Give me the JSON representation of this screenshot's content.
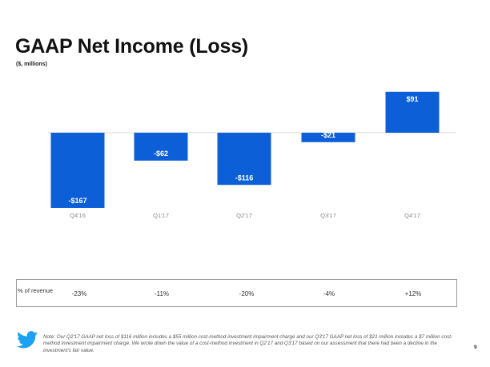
{
  "header": {
    "title": "GAAP Net Income (Loss)",
    "subtitle": "($, millions)"
  },
  "chart_data": {
    "type": "bar",
    "title": "GAAP Net Income (Loss)",
    "ylabel": "($, millions)",
    "categories": [
      "Q4'16",
      "Q1'17",
      "Q2'17",
      "Q3'17",
      "Q4'17"
    ],
    "values": [
      -167,
      -62,
      -116,
      -21,
      91
    ],
    "data_labels": [
      "-$167",
      "-$62",
      "-$116",
      "-$21",
      "$91"
    ],
    "ylim": [
      -167,
      91
    ],
    "grid": false,
    "bar_color": "#0d5fd8"
  },
  "revenue_pct": {
    "label": "% of revenue",
    "values": [
      "-23%",
      "-11%",
      "-20%",
      "-4%",
      "+12%"
    ]
  },
  "footer": {
    "icon": "twitter-bird-icon",
    "icon_color": "#1da1f2",
    "note": "Note: Our Q2'17 GAAP net loss of $116 million includes a $55 million cost-method investment impairment charge and our Q3'17 GAAP net loss of $21 million includes a $7 million cost-method investment impairment charge. We wrote down the value of a cost-method investment in Q2'17 and Q3'17 based on our assessment that there had been a decline in the investment's fair value.",
    "page_number": "9"
  }
}
